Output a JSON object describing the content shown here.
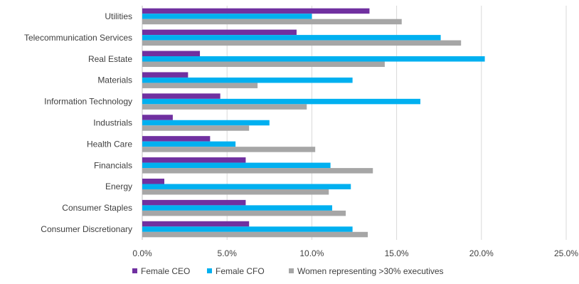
{
  "chart_data": {
    "type": "bar",
    "orientation": "horizontal",
    "categories": [
      "Utilities",
      "Telecommunication Services",
      "Real Estate",
      "Materials",
      "Information Technology",
      "Industrials",
      "Health Care",
      "Financials",
      "Energy",
      "Consumer Staples",
      "Consumer Discretionary"
    ],
    "series": [
      {
        "name": "Female CEO",
        "color": "#7030A0",
        "values": [
          13.4,
          9.1,
          3.4,
          2.7,
          4.6,
          1.8,
          4.0,
          6.1,
          1.3,
          6.1,
          6.3
        ]
      },
      {
        "name": "Female CFO",
        "color": "#00B0F0",
        "values": [
          10.0,
          17.6,
          20.2,
          12.4,
          16.4,
          7.5,
          5.5,
          11.1,
          12.3,
          11.2,
          12.4
        ]
      },
      {
        "name": "Women representing >30% executives",
        "color": "#A6A6A6",
        "values": [
          15.3,
          18.8,
          14.3,
          6.8,
          9.7,
          6.3,
          10.2,
          13.6,
          11.0,
          12.0,
          13.3
        ]
      }
    ],
    "xlim": [
      0,
      25
    ],
    "x_ticks": [
      "0.0%",
      "5.0%",
      "10.0%",
      "15.0%",
      "20.0%",
      "25.0%"
    ],
    "grid": true,
    "legend_position": "bottom",
    "title": "",
    "xlabel": "",
    "ylabel": ""
  }
}
